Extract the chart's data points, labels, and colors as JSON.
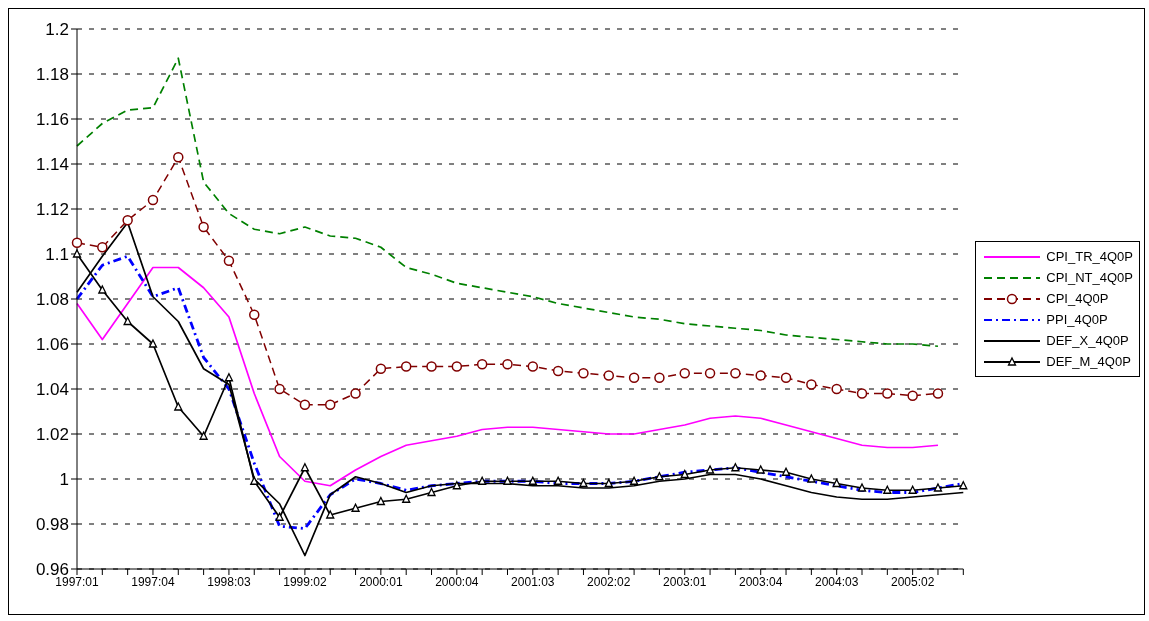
{
  "chart_data": {
    "type": "line",
    "categories": [
      "1997:01",
      null,
      null,
      "1997:04",
      null,
      null,
      "1998:03",
      null,
      null,
      "1999:02",
      null,
      null,
      "2000:01",
      null,
      null,
      "2000:04",
      null,
      null,
      "2001:03",
      null,
      null,
      "2002:02",
      null,
      null,
      "2003:01",
      null,
      null,
      "2003:04",
      null,
      null,
      "2004:03",
      null,
      null,
      "2005:02",
      null,
      null
    ],
    "ylim": [
      0.96,
      1.2
    ],
    "yticks": [
      0.96,
      0.98,
      1,
      1.02,
      1.04,
      1.06,
      1.08,
      1.1,
      1.12,
      1.14,
      1.16,
      1.18,
      1.2
    ],
    "grid": "y",
    "legend": "right",
    "series": [
      {
        "name": "CPI_TR_4Q0P",
        "color": "#ff00ff",
        "line_style": "solid",
        "marker": "none",
        "values": [
          1.078,
          1.062,
          1.078,
          1.094,
          1.094,
          1.085,
          1.072,
          1.038,
          1.01,
          0.999,
          0.997,
          1.004,
          1.01,
          1.015,
          1.017,
          1.019,
          1.022,
          1.023,
          1.023,
          1.022,
          1.021,
          1.02,
          1.02,
          1.022,
          1.024,
          1.027,
          1.028,
          1.027,
          1.024,
          1.021,
          1.018,
          1.015,
          1.014,
          1.014,
          1.015,
          null
        ]
      },
      {
        "name": "CPI_NT_4Q0P",
        "color": "#008000",
        "line_style": "dashed",
        "marker": "none",
        "values": [
          1.148,
          1.158,
          1.164,
          1.165,
          1.187,
          1.132,
          1.118,
          1.111,
          1.109,
          1.112,
          1.108,
          1.107,
          1.103,
          1.094,
          1.091,
          1.087,
          1.085,
          1.083,
          1.081,
          1.078,
          1.076,
          1.074,
          1.072,
          1.071,
          1.069,
          1.068,
          1.067,
          1.066,
          1.064,
          1.063,
          1.062,
          1.061,
          1.06,
          1.06,
          1.059,
          null
        ]
      },
      {
        "name": "CPI_4Q0P",
        "color": "#800000",
        "line_style": "dashed",
        "marker": "circle",
        "values": [
          1.105,
          1.103,
          1.115,
          1.124,
          1.143,
          1.112,
          1.097,
          1.073,
          1.04,
          1.033,
          1.033,
          1.038,
          1.049,
          1.05,
          1.05,
          1.05,
          1.051,
          1.051,
          1.05,
          1.048,
          1.047,
          1.046,
          1.045,
          1.045,
          1.047,
          1.047,
          1.047,
          1.046,
          1.045,
          1.042,
          1.04,
          1.038,
          1.038,
          1.037,
          1.038,
          null
        ]
      },
      {
        "name": "PPI_4Q0P",
        "color": "#0000ff",
        "line_style": "dashdot",
        "marker": "none",
        "values": [
          1.08,
          1.095,
          1.099,
          1.081,
          1.085,
          1.054,
          1.04,
          1.007,
          0.979,
          0.978,
          0.993,
          1.0,
          0.998,
          0.995,
          0.997,
          0.998,
          0.999,
          0.999,
          0.999,
          0.998,
          0.998,
          0.998,
          0.999,
          1.001,
          1.003,
          1.004,
          1.005,
          1.003,
          1.001,
          0.999,
          0.997,
          0.995,
          0.994,
          0.994,
          0.996,
          0.998
        ]
      },
      {
        "name": "DEF_X_4Q0P",
        "color": "#000000",
        "line_style": "solid",
        "marker": "none",
        "values": [
          1.083,
          1.099,
          1.114,
          1.081,
          1.07,
          1.049,
          1.042,
          1.0,
          0.989,
          0.966,
          0.993,
          1.001,
          0.998,
          0.994,
          0.997,
          0.998,
          0.998,
          0.998,
          0.997,
          0.997,
          0.996,
          0.996,
          0.997,
          0.999,
          1.0,
          1.002,
          1.002,
          1.0,
          0.997,
          0.994,
          0.992,
          0.991,
          0.991,
          0.992,
          0.993,
          0.994
        ]
      },
      {
        "name": "DEF_M_4Q0P",
        "color": "#000000",
        "line_style": "solid",
        "marker": "triangle",
        "values": [
          1.1,
          1.084,
          1.07,
          1.06,
          1.032,
          1.019,
          1.045,
          0.999,
          0.983,
          1.005,
          0.984,
          0.987,
          0.99,
          0.991,
          0.994,
          0.997,
          0.999,
          0.999,
          0.999,
          0.999,
          0.998,
          0.998,
          0.999,
          1.001,
          1.002,
          1.004,
          1.005,
          1.004,
          1.003,
          1.0,
          0.998,
          0.996,
          0.995,
          0.995,
          0.996,
          0.997
        ]
      }
    ]
  }
}
